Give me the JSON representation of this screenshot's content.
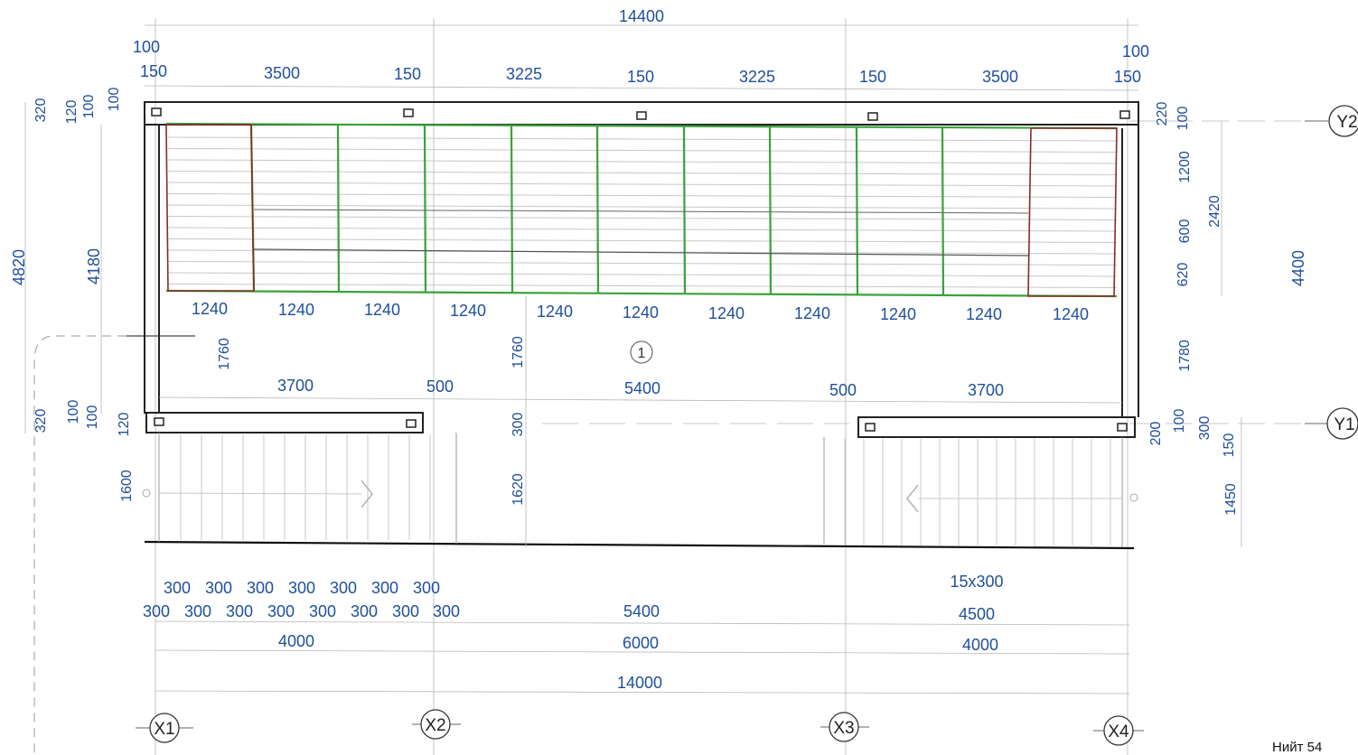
{
  "top_dimensions": {
    "overall": "14400",
    "offset_left": "100",
    "offset_right": "100",
    "segments": [
      "150",
      "3500",
      "150",
      "3225",
      "150",
      "3225",
      "150",
      "3500",
      "150"
    ]
  },
  "left_dimensions": {
    "overall": "4820",
    "inner": "4180",
    "top_stack": [
      "320",
      "120",
      "100",
      "100"
    ],
    "bottom_stack": [
      "320",
      "100",
      "100",
      "120"
    ],
    "gap": "1760",
    "stair_depth": "1600"
  },
  "right_dimensions": {
    "stack_top": [
      "220",
      "100"
    ],
    "bands": [
      "1200",
      "600",
      "620"
    ],
    "sum": "2420",
    "axis_span": "4400",
    "opening": "1780",
    "stack_bottom": [
      "200",
      "100",
      "300",
      "150"
    ],
    "stair_depth": "1450"
  },
  "panel_widths": [
    "1240",
    "1240",
    "1240",
    "1240",
    "1240",
    "1240",
    "1240",
    "1240",
    "1240",
    "1240",
    "1240"
  ],
  "mid_dimensions": {
    "left_span": "3700",
    "left_gap": "500",
    "center_span": "5400",
    "right_gap": "500",
    "right_span": "3700",
    "center_height": "1760",
    "center_wall": "300",
    "center_depth": "1620"
  },
  "room_marker": "1",
  "bottom_dimensions": {
    "left_steps_row1": [
      "300",
      "300",
      "300",
      "300",
      "300",
      "300",
      "300"
    ],
    "left_steps_row2": [
      "300",
      "300",
      "300",
      "300",
      "300",
      "300",
      "300",
      "300"
    ],
    "left_total": "4000",
    "center_inner": "5400",
    "center_total": "6000",
    "right_steps": "15x300",
    "right_run": "4500",
    "right_total": "4000",
    "overall": "14000"
  },
  "axes": {
    "x": [
      "X1",
      "X2",
      "X3",
      "X4"
    ],
    "y": [
      "Y2",
      "Y1"
    ]
  },
  "footer_text": "Нийт 54"
}
